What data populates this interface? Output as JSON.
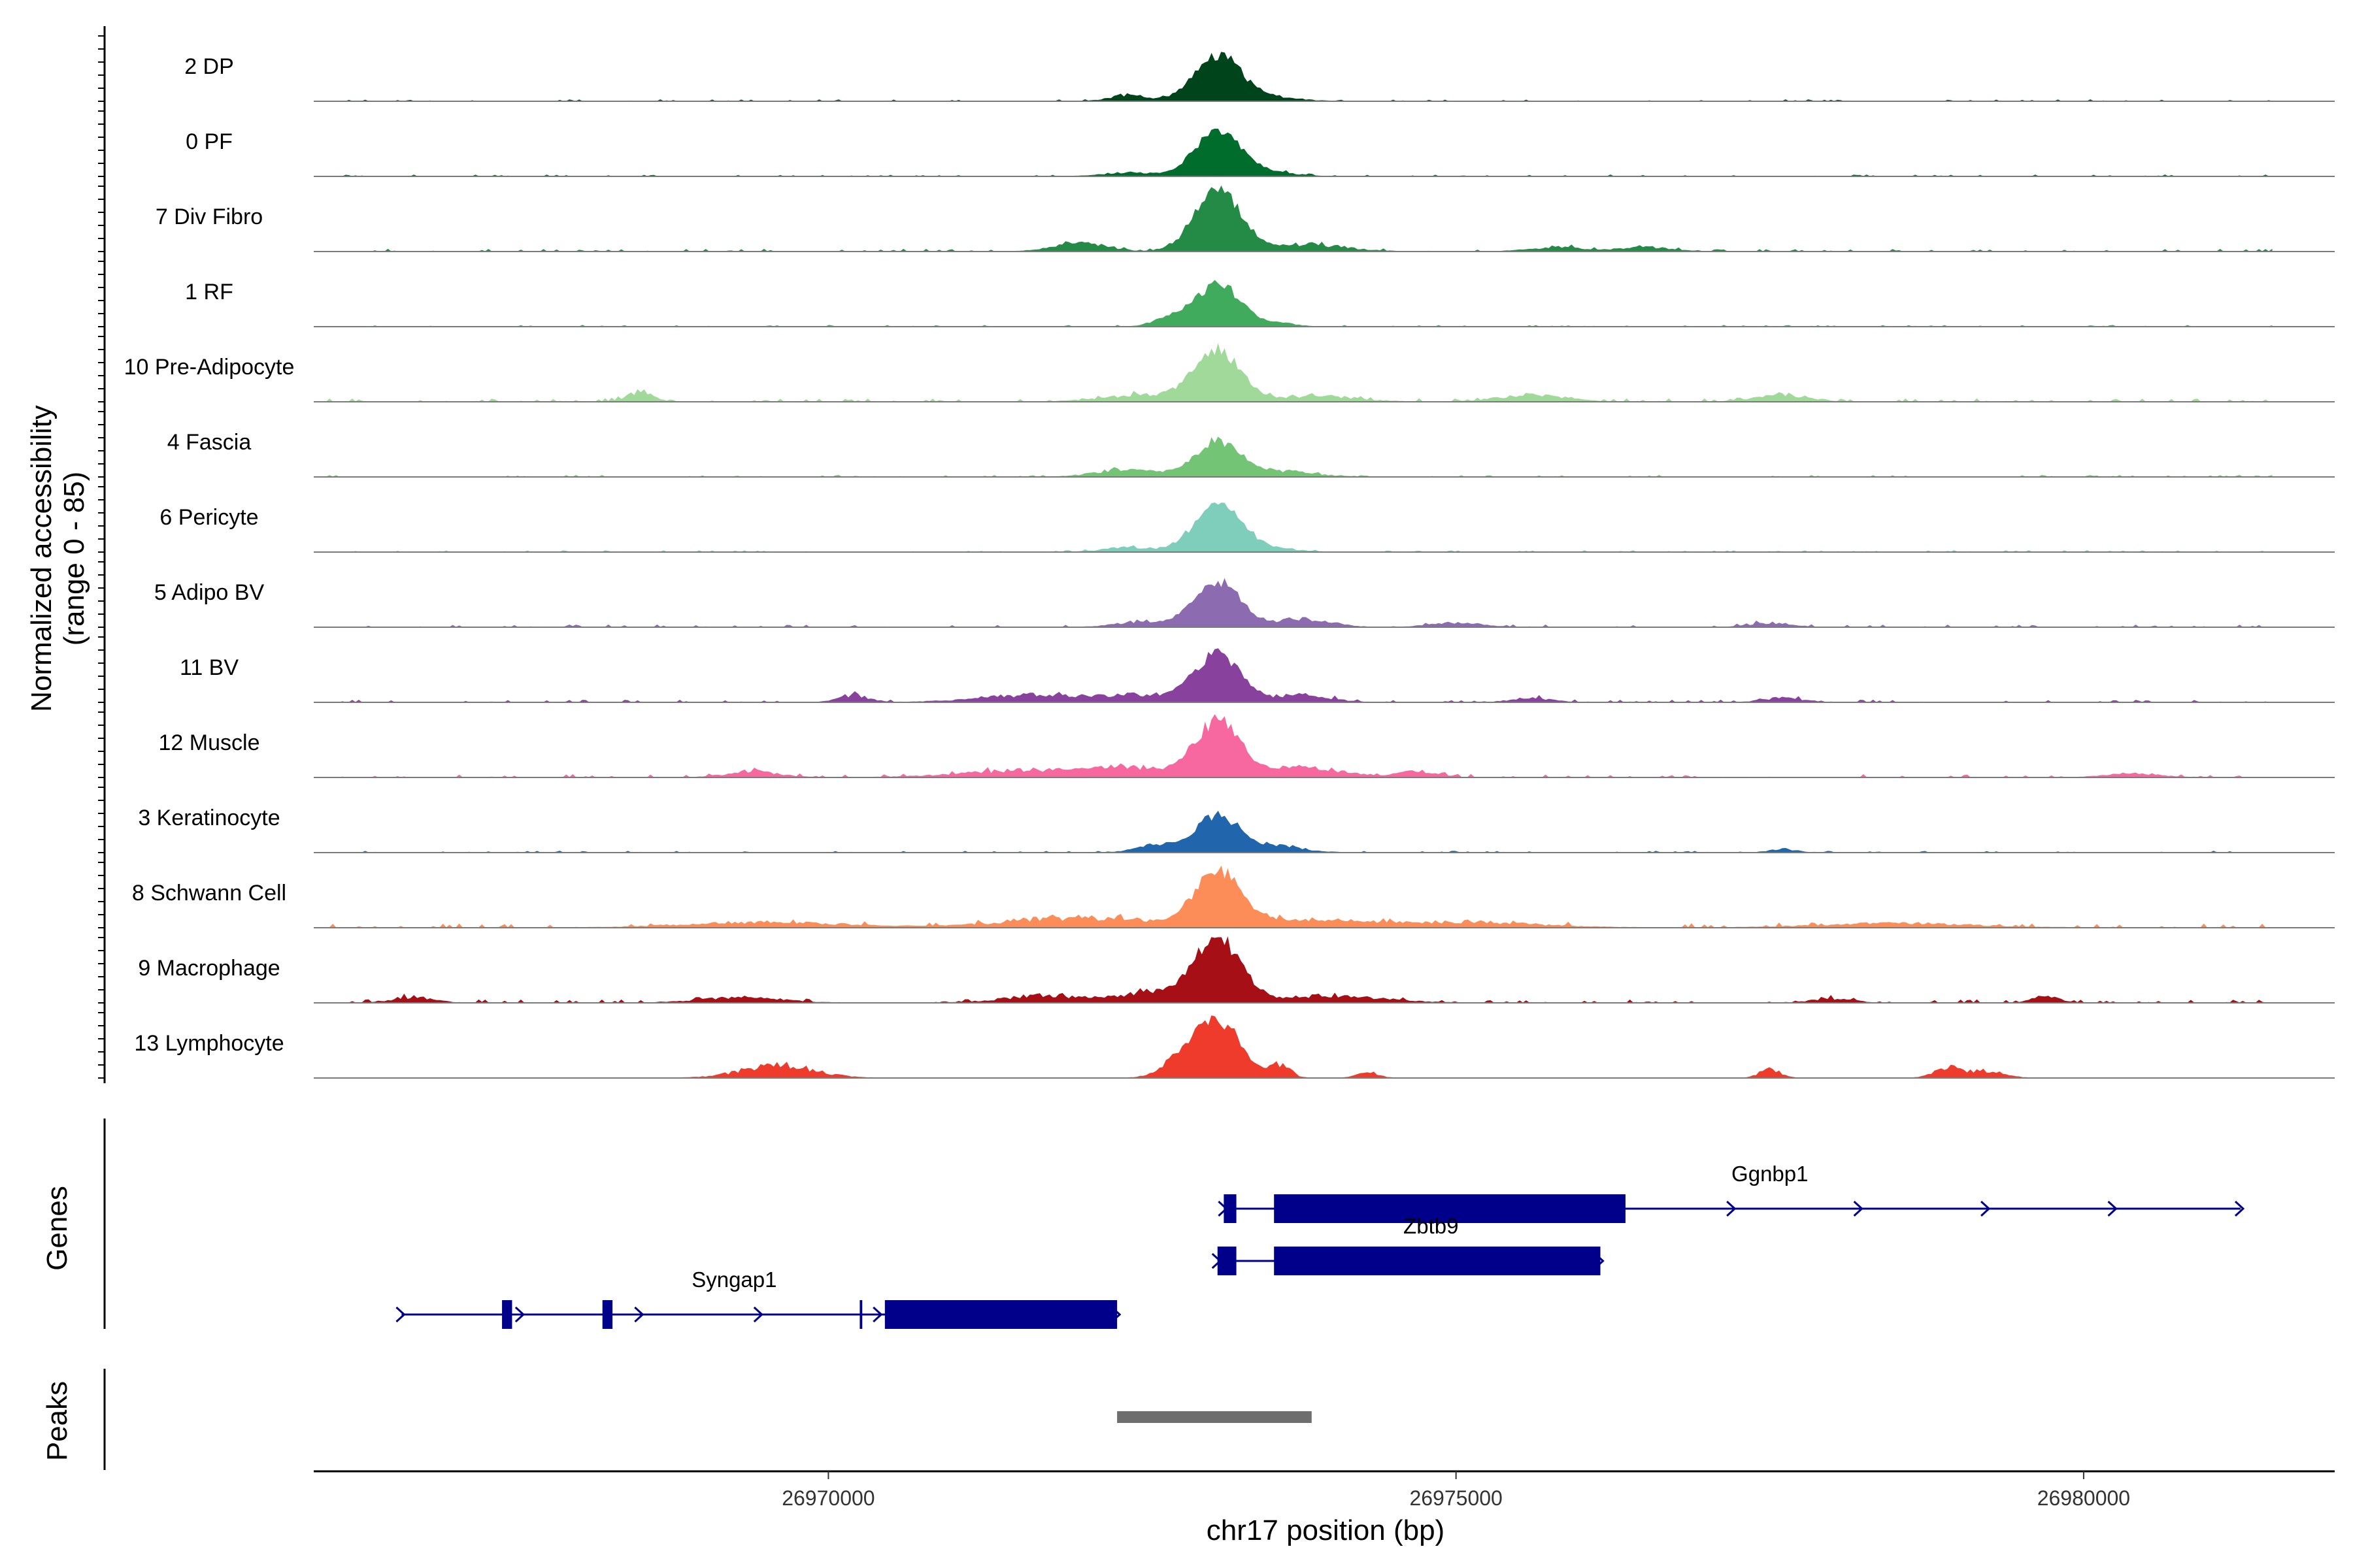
{
  "chart_data": {
    "type": "area",
    "title": "",
    "ylabel": "Normalized accessibility",
    "ylabel_range": "(range 0 - 85)",
    "ylim": [
      0,
      85
    ],
    "xlabel": "chr17 position (bp)",
    "xlim": [
      26965900,
      26982000
    ],
    "x_ticks": [
      26970000,
      26975000,
      26980000
    ],
    "x_tick_labels": [
      "26970000",
      "26975000",
      "26980000"
    ],
    "tracks": [
      {
        "name": "2 DP",
        "color": "#00441b",
        "peak": 60,
        "bg": 2,
        "extras": [
          [
            26972400,
            8,
            150
          ],
          [
            26973500,
            6,
            220
          ]
        ]
      },
      {
        "name": "0 PF",
        "color": "#006d2c",
        "peak": 58,
        "bg": 2,
        "extras": [
          [
            26972400,
            5,
            200
          ],
          [
            26973500,
            6,
            200
          ]
        ]
      },
      {
        "name": "7 Div Fibro",
        "color": "#238b45",
        "peak": 80,
        "bg": 3,
        "extras": [
          [
            26972000,
            12,
            200
          ],
          [
            26973800,
            10,
            300
          ],
          [
            26975800,
            6,
            200
          ],
          [
            26976500,
            6,
            200
          ]
        ]
      },
      {
        "name": "1 RF",
        "color": "#41ab5d",
        "peak": 55,
        "bg": 2,
        "extras": [
          [
            26972700,
            10,
            120
          ],
          [
            26973600,
            5,
            120
          ]
        ]
      },
      {
        "name": "10 Pre-Adipocyte",
        "color": "#a1d99b",
        "peak": 65,
        "bg": 4,
        "extras": [
          [
            26968500,
            14,
            100
          ],
          [
            26972500,
            10,
            300
          ],
          [
            26973900,
            8,
            300
          ],
          [
            26975600,
            10,
            250
          ],
          [
            26977600,
            10,
            200
          ]
        ]
      },
      {
        "name": "4 Fascia",
        "color": "#74c476",
        "peak": 45,
        "bg": 2,
        "extras": [
          [
            26972400,
            10,
            250
          ],
          [
            26973600,
            8,
            250
          ]
        ]
      },
      {
        "name": "6 Pericyte",
        "color": "#7fcdbb",
        "peak": 62,
        "bg": 2,
        "extras": [
          [
            26972400,
            6,
            200
          ],
          [
            26973500,
            6,
            200
          ]
        ]
      },
      {
        "name": "5 Adipo BV",
        "color": "#8c6bb1",
        "peak": 60,
        "bg": 3,
        "extras": [
          [
            26972500,
            8,
            200
          ],
          [
            26973800,
            12,
            200
          ],
          [
            26975000,
            6,
            200
          ],
          [
            26977500,
            6,
            150
          ]
        ]
      },
      {
        "name": "11 BV",
        "color": "#88419d",
        "peak": 62,
        "bg": 3,
        "extras": [
          [
            26970200,
            10,
            120
          ],
          [
            26971600,
            10,
            400
          ],
          [
            26972500,
            10,
            300
          ],
          [
            26973800,
            10,
            200
          ],
          [
            26975600,
            6,
            150
          ],
          [
            26977600,
            6,
            150
          ]
        ]
      },
      {
        "name": "12 Muscle",
        "color": "#f768a1",
        "peak": 72,
        "bg": 4,
        "extras": [
          [
            26969400,
            8,
            200
          ],
          [
            26971600,
            10,
            500
          ],
          [
            26972400,
            12,
            300
          ],
          [
            26973800,
            14,
            300
          ],
          [
            26974700,
            8,
            150
          ],
          [
            26980400,
            6,
            200
          ]
        ]
      },
      {
        "name": "3 Keratinocyte",
        "color": "#2166ac",
        "peak": 48,
        "bg": 2,
        "extras": [
          [
            26972600,
            10,
            150
          ],
          [
            26973600,
            8,
            200
          ],
          [
            26977600,
            5,
            100
          ]
        ]
      },
      {
        "name": "8 Schwann Cell",
        "color": "#fc8d59",
        "peak": 70,
        "bg": 5,
        "extras": [
          [
            26972000,
            14,
            600
          ],
          [
            26973800,
            10,
            400
          ],
          [
            26969500,
            8,
            600
          ],
          [
            26975000,
            8,
            600
          ],
          [
            26978500,
            6,
            600
          ]
        ]
      },
      {
        "name": "9 Macrophage",
        "color": "#a50f15",
        "peak": 82,
        "bg": 4,
        "extras": [
          [
            26966700,
            8,
            150
          ],
          [
            26969300,
            8,
            300
          ],
          [
            26971700,
            10,
            300
          ],
          [
            26972600,
            14,
            300
          ],
          [
            26974000,
            10,
            400
          ],
          [
            26978000,
            6,
            150
          ],
          [
            26979700,
            10,
            100
          ]
        ]
      },
      {
        "name": "13 Lymphocyte",
        "color": "#ef3b2c",
        "peak": 75,
        "bg": 0,
        "extras": [
          [
            26969600,
            18,
            280
          ],
          [
            26972800,
            20,
            150
          ],
          [
            26973600,
            18,
            80
          ],
          [
            26974300,
            8,
            80
          ],
          [
            26977500,
            12,
            80
          ],
          [
            26978900,
            14,
            100
          ],
          [
            26979200,
            10,
            150
          ]
        ]
      }
    ],
    "peak_center": 26973100,
    "peak_sigma": 180,
    "genes_axis_label": "Genes",
    "peaks_axis_label": "Peaks",
    "genes": [
      {
        "name": "Ggnbp1",
        "color": "#00008b",
        "strand": "+",
        "start": 26973150,
        "end": 26981250,
        "exons": [
          [
            26973150,
            26973250
          ],
          [
            26973550,
            26976350
          ]
        ]
      },
      {
        "name": "Zbtb9",
        "color": "#00008b",
        "strand": "+",
        "start": 26973100,
        "end": 26976150,
        "exons": [
          [
            26973100,
            26973250
          ],
          [
            26973550,
            26976150
          ]
        ]
      },
      {
        "name": "Syngap1",
        "color": "#00008b",
        "strand": "+",
        "start": 26966600,
        "end": 26972300,
        "exons": [
          [
            26967400,
            26967480
          ],
          [
            26968200,
            26968280
          ],
          [
            26970250,
            26970270
          ],
          [
            26970450,
            26972300
          ]
        ]
      }
    ],
    "peaks": [
      {
        "start": 26972300,
        "end": 26973850,
        "color": "#6e6e6e"
      }
    ]
  }
}
